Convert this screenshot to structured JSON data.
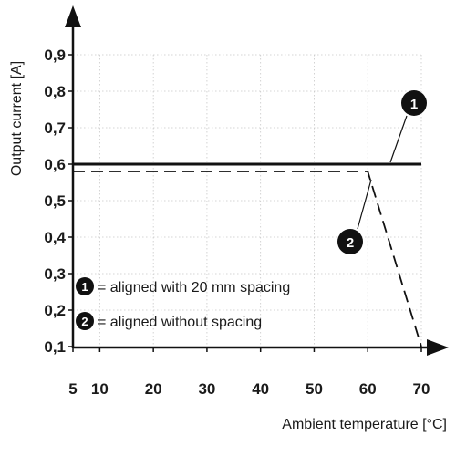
{
  "chart_data": {
    "type": "line",
    "ylabel": "Output current [A]",
    "xlabel": "Ambient temperature [°C]",
    "xlim": [
      5,
      70
    ],
    "ylim": [
      0.1,
      0.9
    ],
    "x_ticks": [
      5,
      10,
      20,
      30,
      40,
      50,
      60,
      70
    ],
    "x_tick_labels": [
      "5",
      "10",
      "20",
      "30",
      "40",
      "50",
      "60",
      "70"
    ],
    "y_ticks": [
      0.1,
      0.2,
      0.3,
      0.4,
      0.5,
      0.6,
      0.7,
      0.8,
      0.9
    ],
    "y_tick_labels": [
      "0,1",
      "0,2",
      "0,3",
      "0,4",
      "0,5",
      "0,6",
      "0,7",
      "0,8",
      "0,9"
    ],
    "grid": true,
    "series": [
      {
        "marker": "1",
        "style": "solid",
        "color": "#111111",
        "points": [
          [
            5,
            0.6
          ],
          [
            70,
            0.6
          ]
        ]
      },
      {
        "marker": "2",
        "style": "dashed",
        "color": "#111111",
        "points": [
          [
            5,
            0.58
          ],
          [
            60,
            0.58
          ],
          [
            70,
            0.1
          ]
        ]
      }
    ],
    "legend": [
      {
        "marker": "1",
        "text": "= aligned with 20 mm spacing"
      },
      {
        "marker": "2",
        "text": "= aligned without spacing"
      }
    ],
    "legend_position": "bottom-left"
  }
}
